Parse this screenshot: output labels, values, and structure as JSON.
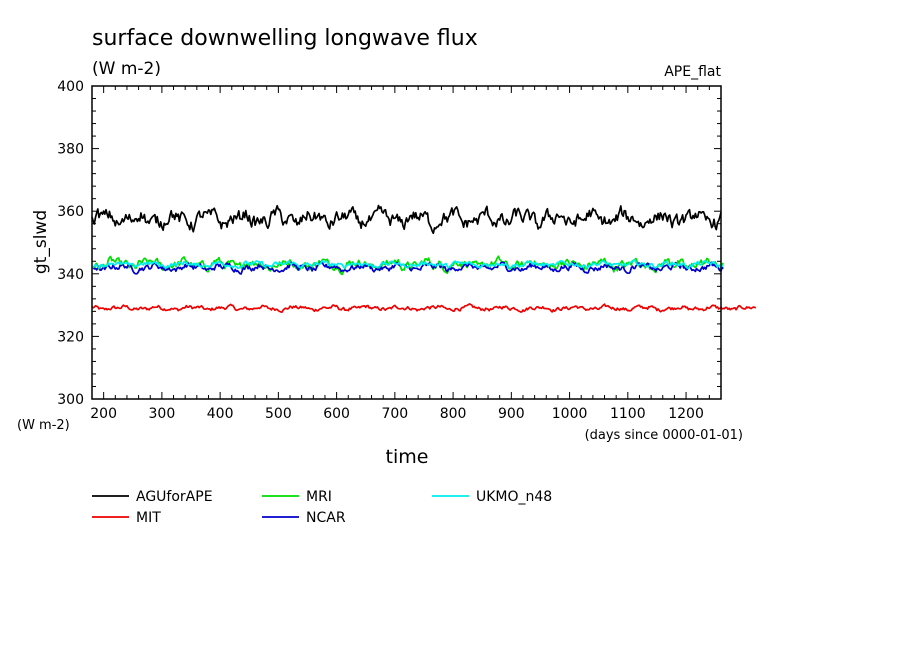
{
  "chart_data": {
    "type": "line",
    "title": "surface downwelling longwave flux",
    "subtitle": "(W m-2)",
    "tag": "APE_flat",
    "ylabel": "gt_slwd",
    "y_unit": "(W m-2)",
    "xlabel": "time",
    "x_unit": "(days since 0000-01-01)",
    "xlim": [
      180,
      1260
    ],
    "ylim": [
      300,
      400
    ],
    "x_ticks": [
      200,
      300,
      400,
      500,
      600,
      700,
      800,
      900,
      1000,
      1100,
      1200
    ],
    "y_ticks": [
      300,
      320,
      340,
      360,
      380,
      400
    ],
    "grid": false,
    "legend_position": "bottom-left",
    "series": [
      {
        "name": "AGUforAPE",
        "color": "#000000",
        "x_start": 180,
        "x_end": 1260,
        "mean": 357.5,
        "amplitude": 3.2
      },
      {
        "name": "MRI",
        "color": "#00dd00",
        "x_start": 180,
        "x_end": 1265,
        "mean": 343.0,
        "amplitude": 2.0
      },
      {
        "name": "NCAR",
        "color": "#0000cc",
        "x_start": 180,
        "x_end": 1265,
        "mean": 342.0,
        "amplitude": 1.4
      },
      {
        "name": "UKMO_n48",
        "color": "#00eeee",
        "x_start": 180,
        "x_end": 1265,
        "mean": 343.0,
        "amplitude": 1.0
      },
      {
        "name": "MIT",
        "color": "#ee0000",
        "x_start": 180,
        "x_end": 1320,
        "mean": 329.0,
        "amplitude": 0.9
      }
    ]
  }
}
